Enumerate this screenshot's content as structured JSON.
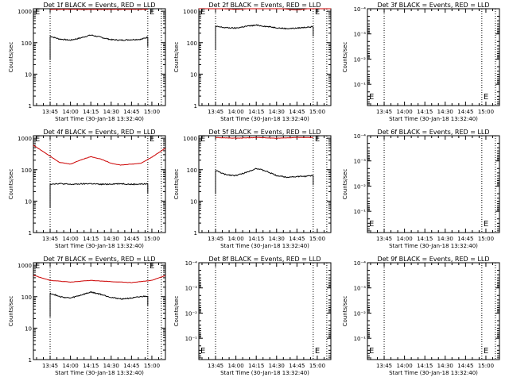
{
  "figure": {
    "panel_title_suffix": " BLACK = Events, RED = LLD",
    "xlabel": "Start Time (30-Jan-18 13:32:40)",
    "ylabel": "Counts/sec",
    "x_tick_labels": [
      "13:45",
      "14:00",
      "14:15",
      "14:30",
      "14:45",
      "15:00"
    ],
    "y_tick_labels_high": [
      "1",
      "10",
      "100",
      "1000"
    ],
    "y_tick_labels_low": [
      "10⁰",
      "10⁻¹",
      "10⁻²",
      "10⁻³",
      "10⁻⁴"
    ],
    "marker_char": "E",
    "colors": {
      "events": "#000000",
      "lld": "#cc0000",
      "axes": "#000000",
      "background": "#ffffff"
    }
  },
  "chart_data": [
    {
      "type": "line",
      "title": "Det 1f",
      "scale": "log",
      "ylim": [
        1,
        1200
      ],
      "xlim": [
        "13:32:40",
        "15:10"
      ],
      "guides": [
        "13:45",
        "14:57",
        "15:07"
      ],
      "series": [
        {
          "name": "Events",
          "color": "#000000",
          "x": [
            "13:45",
            "13:52",
            "14:00",
            "14:07",
            "14:15",
            "14:22",
            "14:30",
            "14:37",
            "14:45",
            "14:52",
            "14:57"
          ],
          "y": [
            160,
            130,
            120,
            140,
            175,
            150,
            125,
            120,
            125,
            128,
            150
          ]
        },
        {
          "name": "LLD",
          "color": "#cc0000",
          "x": [
            "13:45",
            "14:00",
            "14:15",
            "14:30",
            "14:45",
            "14:57"
          ],
          "y": [
            1150,
            1150,
            1150,
            1150,
            1150,
            1150
          ]
        }
      ]
    },
    {
      "type": "line",
      "title": "Det 2f",
      "scale": "log",
      "ylim": [
        1,
        1200
      ],
      "xlim": [
        "13:32:40",
        "15:10"
      ],
      "guides": [
        "13:45",
        "14:57",
        "15:07"
      ],
      "series": [
        {
          "name": "Events",
          "color": "#000000",
          "x": [
            "13:45",
            "13:52",
            "14:00",
            "14:07",
            "14:15",
            "14:22",
            "14:30",
            "14:37",
            "14:45",
            "14:52",
            "14:57"
          ],
          "y": [
            330,
            300,
            290,
            330,
            360,
            330,
            300,
            280,
            290,
            310,
            320
          ]
        },
        {
          "name": "LLD",
          "color": "#cc0000",
          "x": [
            "13:32:40",
            "13:45",
            "14:00",
            "14:15",
            "14:30",
            "14:45",
            "15:00",
            "15:10"
          ],
          "y": [
            1300,
            1250,
            1150,
            1250,
            1250,
            1100,
            1300,
            1400
          ]
        }
      ]
    },
    {
      "type": "line",
      "title": "Det 3f",
      "scale": "log",
      "ylim": [
        0.7,
        0.0001
      ],
      "xlim": [
        "13:32:40",
        "15:10"
      ],
      "guides": [
        "13:45",
        "14:57",
        "15:07"
      ],
      "series": []
    },
    {
      "type": "line",
      "title": "Det 4f",
      "scale": "log",
      "ylim": [
        1,
        1200
      ],
      "xlim": [
        "13:32:40",
        "15:10"
      ],
      "guides": [
        "13:45",
        "14:57",
        "15:07"
      ],
      "series": [
        {
          "name": "Events",
          "color": "#000000",
          "x": [
            "13:45",
            "13:52",
            "14:00",
            "14:07",
            "14:15",
            "14:22",
            "14:30",
            "14:37",
            "14:45",
            "14:52",
            "14:57"
          ],
          "y": [
            35,
            36,
            34,
            35,
            36,
            34,
            35,
            36,
            34,
            35,
            35
          ]
        },
        {
          "name": "LLD",
          "color": "#cc0000",
          "x": [
            "13:32:40",
            "13:45",
            "13:52",
            "14:00",
            "14:07",
            "14:15",
            "14:22",
            "14:30",
            "14:37",
            "14:45",
            "14:52",
            "15:00",
            "15:10"
          ],
          "y": [
            600,
            270,
            170,
            150,
            200,
            260,
            220,
            160,
            140,
            150,
            160,
            250,
            480
          ]
        }
      ]
    },
    {
      "type": "line",
      "title": "Det 5f",
      "scale": "log",
      "ylim": [
        1,
        1200
      ],
      "xlim": [
        "13:32:40",
        "15:10"
      ],
      "guides": [
        "13:45",
        "14:57",
        "15:07"
      ],
      "series": [
        {
          "name": "Events",
          "color": "#000000",
          "x": [
            "13:45",
            "13:52",
            "14:00",
            "14:07",
            "14:15",
            "14:22",
            "14:30",
            "14:37",
            "14:45",
            "14:52",
            "14:57"
          ],
          "y": [
            95,
            70,
            65,
            80,
            110,
            90,
            65,
            58,
            60,
            62,
            65
          ]
        },
        {
          "name": "LLD",
          "color": "#cc0000",
          "x": [
            "13:45",
            "14:00",
            "14:15",
            "14:30",
            "14:45",
            "14:57"
          ],
          "y": [
            1050,
            1000,
            1050,
            1000,
            1050,
            1050
          ]
        }
      ]
    },
    {
      "type": "line",
      "title": "Det 6f",
      "scale": "log",
      "ylim": [
        0.7,
        0.0001
      ],
      "xlim": [
        "13:32:40",
        "15:10"
      ],
      "guides": [
        "13:45",
        "14:57",
        "15:07"
      ],
      "series": []
    },
    {
      "type": "line",
      "title": "Det 7f",
      "scale": "log",
      "ylim": [
        1,
        1200
      ],
      "xlim": [
        "13:32:40",
        "15:10"
      ],
      "guides": [
        "13:45",
        "14:57",
        "15:07"
      ],
      "series": [
        {
          "name": "Events",
          "color": "#000000",
          "x": [
            "13:45",
            "13:52",
            "14:00",
            "14:07",
            "14:15",
            "14:22",
            "14:30",
            "14:37",
            "14:45",
            "14:52",
            "14:57"
          ],
          "y": [
            130,
            100,
            90,
            110,
            140,
            120,
            95,
            85,
            90,
            100,
            105
          ]
        },
        {
          "name": "LLD",
          "color": "#cc0000",
          "x": [
            "13:32:40",
            "13:45",
            "14:00",
            "14:15",
            "14:30",
            "14:45",
            "15:00",
            "15:10"
          ],
          "y": [
            480,
            330,
            290,
            330,
            300,
            280,
            330,
            470
          ]
        }
      ]
    },
    {
      "type": "line",
      "title": "Det 8f",
      "scale": "log",
      "ylim": [
        0.7,
        0.0001
      ],
      "xlim": [
        "13:32:40",
        "15:10"
      ],
      "guides": [
        "13:45",
        "14:57",
        "15:07"
      ],
      "series": []
    },
    {
      "type": "line",
      "title": "Det 9f",
      "scale": "log",
      "ylim": [
        0.7,
        0.0001
      ],
      "xlim": [
        "13:32:40",
        "15:10"
      ],
      "guides": [
        "13:45",
        "14:57",
        "15:07"
      ],
      "series": []
    }
  ]
}
